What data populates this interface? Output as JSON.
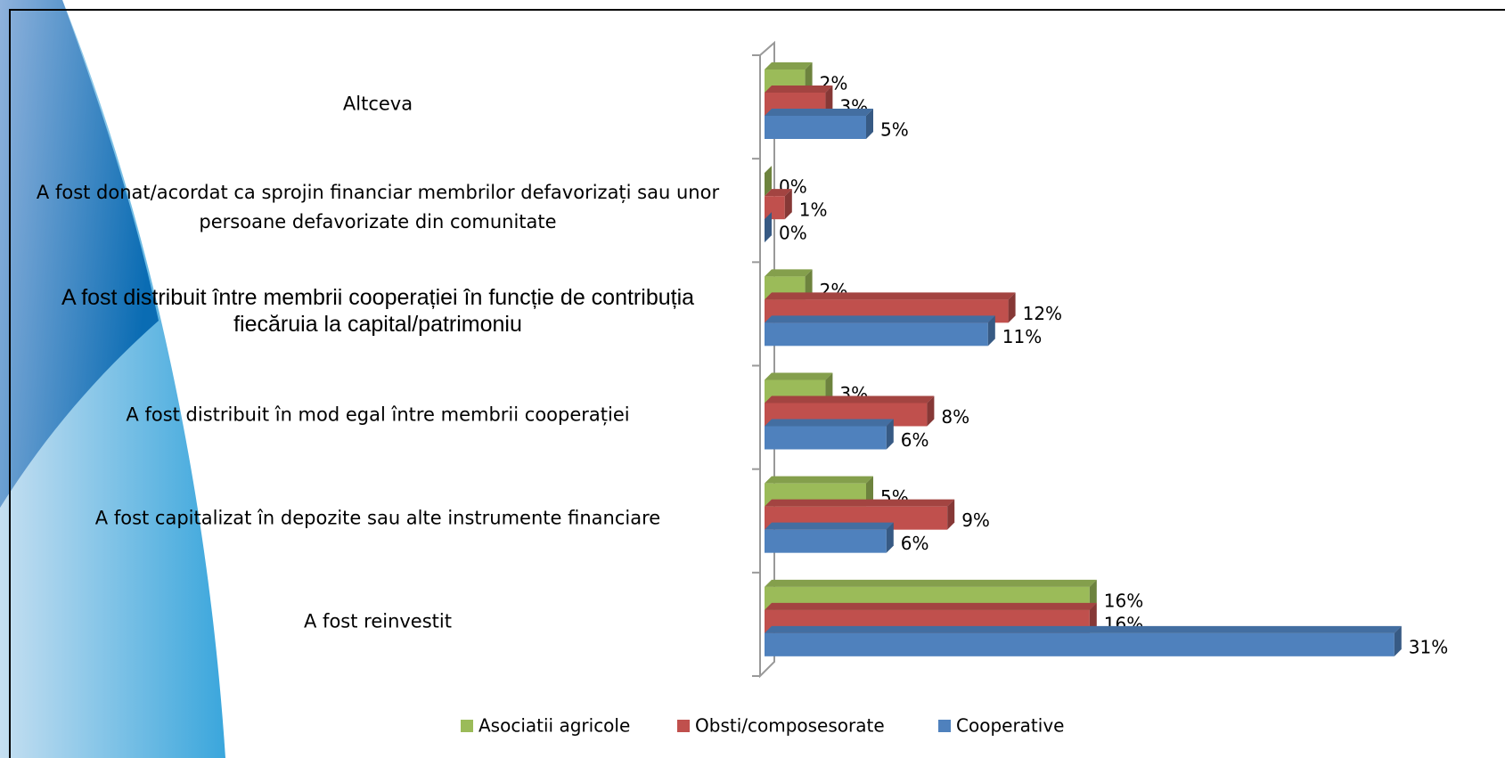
{
  "chart_data": {
    "type": "bar",
    "categories": [
      "Altceva",
      "A fost donat/acordat ca sprojin financiar membrilor defavorizați sau unor persoane defavorizate din comunitate",
      "A fost distribuit între membrii cooperației în funcție de contribuția fiecăruia la capital/patrimoniu",
      "A fost distribuit în mod egal între membrii cooperației",
      "A fost capitalizat în depozite sau alte instrumente financiare",
      "A fost reinvestit"
    ],
    "series": [
      {
        "name": "Asociatii agricole",
        "color": "#9bbb59",
        "values": [
          2,
          0,
          2,
          3,
          5,
          16
        ],
        "value_labels": [
          "2%",
          "0%",
          "2%",
          "3%",
          "5%",
          "16%"
        ]
      },
      {
        "name": "Obsti/composesorate",
        "color": "#c0504d",
        "values": [
          3,
          1,
          12,
          8,
          9,
          16
        ],
        "value_labels": [
          "3%",
          "1%",
          "12%",
          "8%",
          "9%",
          "16%"
        ]
      },
      {
        "name": "Cooperative",
        "color": "#4f81bd",
        "values": [
          5,
          0,
          11,
          6,
          6,
          31
        ],
        "value_labels": [
          "5%",
          "0%",
          "11%",
          "6%",
          "6%",
          "31%"
        ]
      }
    ],
    "legend": "bottom"
  }
}
